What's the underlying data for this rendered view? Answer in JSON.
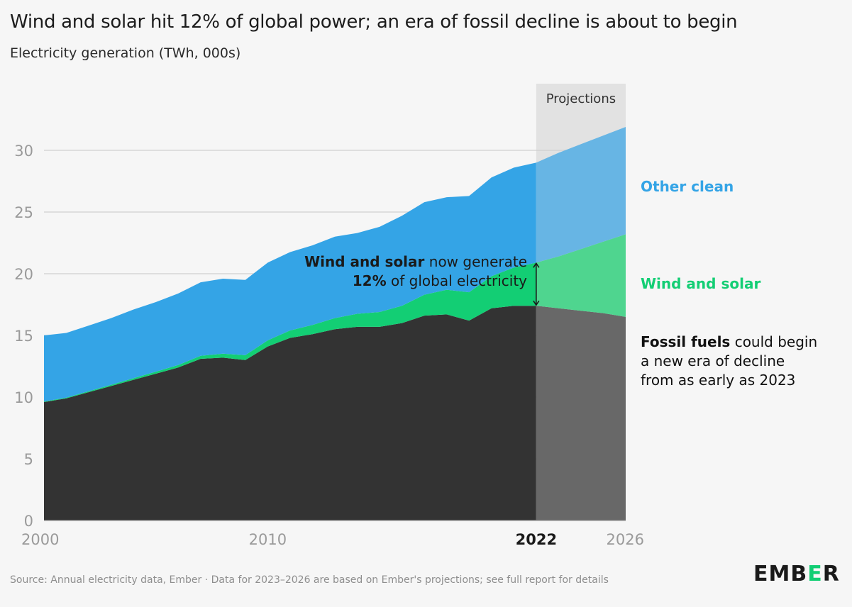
{
  "title": "Wind and solar hit 12% of global power; an era of fossil decline is about to begin",
  "subtitle": "Electricity generation (TWh, 000s)",
  "source": "Source: Annual electricity data, Ember · Data for 2023–2026 are based on Ember's projections; see full report for details",
  "logo": {
    "text_before": "EMB",
    "highlight": "E",
    "text_after": "R"
  },
  "chart_data": {
    "type": "area",
    "stacked": true,
    "title": "Wind and solar hit 12% of global power; an era of fossil decline is about to begin",
    "ylabel": "Electricity generation (TWh, 000s)",
    "xlim": [
      2000,
      2026
    ],
    "ylim": [
      0,
      30
    ],
    "yticks": [
      0,
      5,
      10,
      15,
      20,
      25,
      30
    ],
    "xticks": [
      {
        "label": "2000",
        "value": 2000,
        "bold": false
      },
      {
        "label": "2010",
        "value": 2010,
        "bold": false
      },
      {
        "label": "2022",
        "value": 2022,
        "bold": true
      },
      {
        "label": "2026",
        "value": 2026,
        "bold": false
      }
    ],
    "grid": true,
    "projection": {
      "label": "Projections",
      "from": 2022,
      "to": 2026
    },
    "x": [
      2000,
      2001,
      2002,
      2003,
      2004,
      2005,
      2006,
      2007,
      2008,
      2009,
      2010,
      2011,
      2012,
      2013,
      2014,
      2015,
      2016,
      2017,
      2018,
      2019,
      2020,
      2021,
      2022,
      2023,
      2024,
      2025,
      2026
    ],
    "series": [
      {
        "name": "Fossil fuels",
        "color": "#333333",
        "projection_color": "#686868",
        "values": [
          9.6,
          9.9,
          10.4,
          10.9,
          11.4,
          11.9,
          12.4,
          13.1,
          13.2,
          13.0,
          14.1,
          14.8,
          15.1,
          15.5,
          15.7,
          15.7,
          16.0,
          16.6,
          16.7,
          16.2,
          17.2,
          17.4,
          17.4,
          17.2,
          17.0,
          16.8,
          16.5
        ]
      },
      {
        "name": "Wind and solar",
        "color": "#13ce74",
        "projection_color": "#4fd58f",
        "values": [
          0.05,
          0.06,
          0.08,
          0.1,
          0.13,
          0.16,
          0.2,
          0.25,
          0.32,
          0.4,
          0.5,
          0.6,
          0.75,
          0.9,
          1.05,
          1.2,
          1.4,
          1.7,
          2.0,
          2.3,
          2.6,
          3.1,
          3.5,
          4.2,
          5.0,
          5.8,
          6.7
        ]
      },
      {
        "name": "Other clean",
        "color": "#34a4e6",
        "projection_color": "#67b5e4",
        "values": [
          5.35,
          5.24,
          5.32,
          5.4,
          5.57,
          5.64,
          5.8,
          5.95,
          6.08,
          6.1,
          6.3,
          6.35,
          6.45,
          6.6,
          6.55,
          6.9,
          7.3,
          7.5,
          7.5,
          7.8,
          8.0,
          8.1,
          8.1,
          8.4,
          8.5,
          8.6,
          8.7
        ]
      }
    ],
    "annotations": {
      "wind_solar_share": {
        "bold": "Wind and solar",
        "rest": " now generate",
        "bold2": "12%",
        "rest2": " of global electricity"
      },
      "series_labels": [
        {
          "name": "Other clean",
          "color": "#34a4e6"
        },
        {
          "name": "Wind and solar",
          "color": "#13ce74"
        }
      ],
      "fossil_note": {
        "bold": "Fossil fuels",
        "line1_rest": " could begin",
        "line2": "a new era of decline",
        "line3": "from as early as 2023"
      }
    }
  }
}
